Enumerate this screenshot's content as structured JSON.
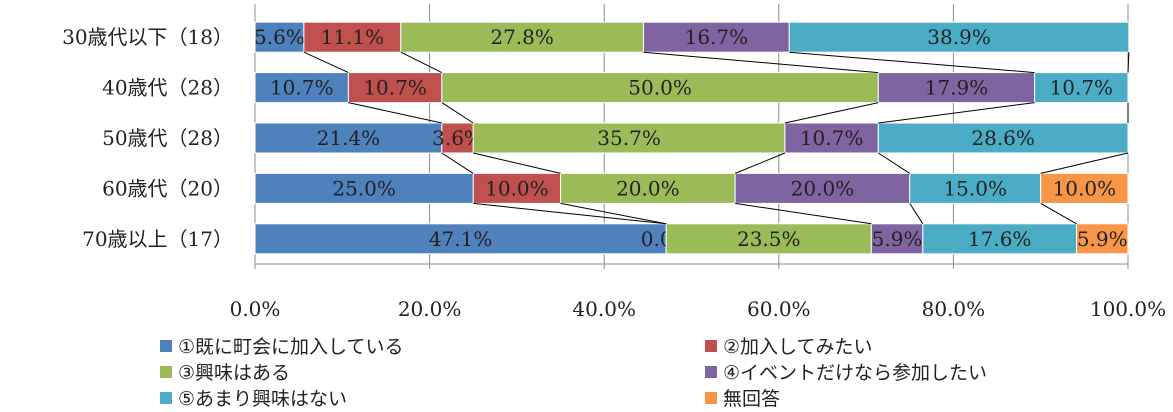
{
  "chart_data": {
    "type": "bar",
    "orientation": "horizontal",
    "stacked_100": true,
    "categories": [
      "30歳代以下（18）",
      "40歳代（28）",
      "50歳代（28）",
      "60歳代（20）",
      "70歳以上（17）"
    ],
    "series": [
      {
        "name": "①既に町会に加入している",
        "color": "#4F81BD",
        "values": [
          5.6,
          10.7,
          21.4,
          25.0,
          47.1
        ],
        "labels": [
          "5.6%",
          "10.7%",
          "21.4%",
          "25.0%",
          "47.1%"
        ]
      },
      {
        "name": "②加入してみたい",
        "color": "#C0504D",
        "values": [
          11.1,
          10.7,
          3.6,
          10.0,
          0.0
        ],
        "labels": [
          "11.1%",
          "10.7%",
          "3.6%",
          "10.0%",
          "0.0%"
        ]
      },
      {
        "name": "③興味はある",
        "color": "#9BBB59",
        "values": [
          27.8,
          50.0,
          35.7,
          20.0,
          23.5
        ],
        "labels": [
          "27.8%",
          "50.0%",
          "35.7%",
          "20.0%",
          "23.5%"
        ]
      },
      {
        "name": "④イベントだけなら参加したい",
        "color": "#8064A2",
        "values": [
          16.7,
          17.9,
          10.7,
          20.0,
          5.9
        ],
        "labels": [
          "16.7%",
          "17.9%",
          "10.7%",
          "20.0%",
          "5.9%"
        ]
      },
      {
        "name": "⑤あまり興味はない",
        "color": "#4BACC6",
        "values": [
          38.9,
          10.7,
          28.6,
          15.0,
          17.6
        ],
        "labels": [
          "38.9%",
          "10.7%",
          "28.6%",
          "15.0%",
          "17.6%"
        ]
      },
      {
        "name": "無回答",
        "color": "#F79646",
        "values": [
          0.0,
          0.0,
          0.0,
          10.0,
          5.9
        ],
        "labels": [
          "",
          "",
          "",
          "10.0%",
          "5.9%"
        ]
      }
    ],
    "xlim": [
      0,
      100
    ],
    "xticks": [
      "0.0%",
      "20.0%",
      "40.0%",
      "60.0%",
      "80.0%",
      "100.0%"
    ],
    "grid": true,
    "series_lines": true,
    "legend_position": "bottom"
  }
}
